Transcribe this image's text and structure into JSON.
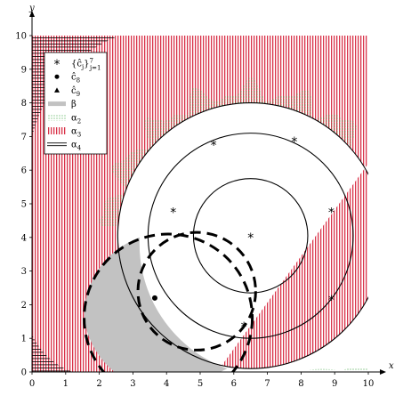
{
  "chart_data": {
    "type": "diagram",
    "xlabel": "x",
    "ylabel": "y",
    "xlim": [
      0,
      10
    ],
    "ylim": [
      0,
      10
    ],
    "xticks": [
      "0",
      "1",
      "2",
      "3",
      "4",
      "5",
      "6",
      "7",
      "8",
      "9",
      "10"
    ],
    "yticks": [
      "0",
      "1",
      "2",
      "3",
      "4",
      "5",
      "6",
      "7",
      "8",
      "9",
      "10"
    ],
    "legend": {
      "placement": "top-left",
      "entries": [
        {
          "key": "centers",
          "marker": "star",
          "text_main": "{ĉ",
          "text_sub": "j",
          "text_close": "}",
          "text_sup": "7",
          "text_sub2": "j=1"
        },
        {
          "key": "c8",
          "marker": "dot",
          "text_main": "ĉ",
          "text_sub": "8"
        },
        {
          "key": "c9",
          "marker": "triangle",
          "text_main": "ĉ",
          "text_sub": "9"
        },
        {
          "key": "beta",
          "marker": "gray-band",
          "text_main": "β"
        },
        {
          "key": "alpha2",
          "marker": "green-dots",
          "text_main": "α",
          "text_sub": "2"
        },
        {
          "key": "alpha3",
          "marker": "red-vertical",
          "text_main": "α",
          "text_sub": "3"
        },
        {
          "key": "alpha4",
          "marker": "double-line",
          "text_main": "α",
          "text_sub": "4"
        }
      ]
    },
    "star_points": [
      [
        5.4,
        6.8
      ],
      [
        7.8,
        6.9
      ],
      [
        4.2,
        4.8
      ],
      [
        6.5,
        4.05
      ],
      [
        8.9,
        4.8
      ],
      [
        6.3,
        1.4
      ],
      [
        8.9,
        2.2
      ]
    ],
    "c8_point": [
      3.65,
      2.2
    ],
    "solid_circles": [
      {
        "cx": 6.5,
        "cy": 4.05,
        "r": 1.7
      },
      {
        "cx": 6.5,
        "cy": 4.05,
        "r": 3.05
      },
      {
        "cx": 6.5,
        "cy": 4.05,
        "r": 3.95
      }
    ],
    "dashed_circles": [
      {
        "cx": 4.9,
        "cy": 2.4,
        "r": 1.75
      },
      {
        "cx": 4.05,
        "cy": 1.6,
        "r": 2.5
      }
    ],
    "beta_region": {
      "cx": 4.05,
      "cy": 1.6,
      "r": 2.5
    },
    "colors": {
      "alpha3": "#d9334a",
      "alpha2": "#3aa540",
      "beta": "#c2c2c2",
      "axis": "#000000"
    }
  }
}
